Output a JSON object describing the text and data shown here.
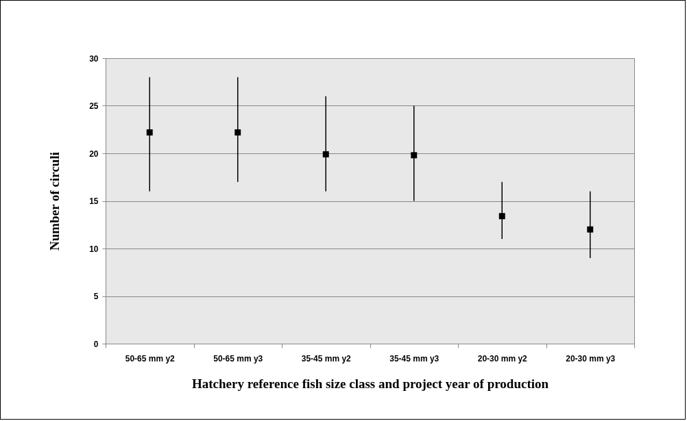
{
  "chart_data": {
    "type": "scatter",
    "xlabel": "Hatchery reference fish size class and project year of production",
    "ylabel": "Number of circuli",
    "categories": [
      "50-65 mm y2",
      "50-65 mm y3",
      "35-45 mm y2",
      "35-45 mm y3",
      "20-30 mm y2",
      "20-30 mm y3"
    ],
    "series": [
      {
        "color": "#000000",
        "values": [
          22.2,
          22.2,
          19.9,
          19.8,
          13.4,
          12.0
        ],
        "errors": [
          [
            16,
            28
          ],
          [
            17,
            28
          ],
          [
            16,
            26
          ],
          [
            15,
            25
          ],
          [
            11,
            17
          ],
          [
            9,
            16
          ]
        ]
      }
    ],
    "ylim": [
      0,
      30
    ],
    "yticks": [
      0,
      5,
      10,
      15,
      20,
      25,
      30
    ],
    "grid": "y",
    "marker": "square"
  }
}
